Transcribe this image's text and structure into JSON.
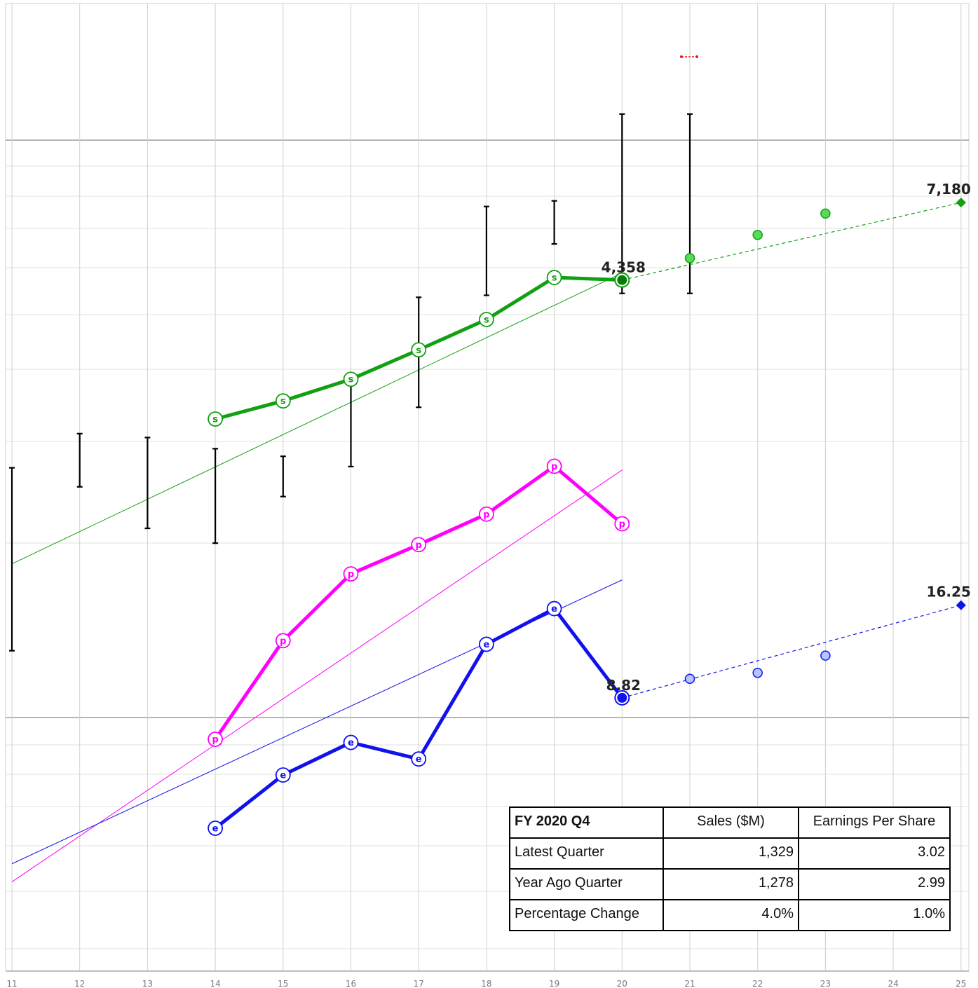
{
  "chart_data": {
    "type": "line",
    "x_ticks": [
      11,
      12,
      13,
      14,
      15,
      16,
      17,
      18,
      19,
      20,
      21,
      22,
      23,
      24,
      25
    ],
    "xlim": [
      11,
      25
    ],
    "grid": true,
    "series": [
      {
        "key": "sales",
        "marker_letter": "s",
        "color": "#11a011",
        "x": [
          14,
          15,
          16,
          17,
          18,
          19,
          20
        ],
        "values": [
          1780,
          2000,
          2300,
          2780,
          3380,
          4430,
          4358
        ],
        "end_label": "4,358",
        "trend": {
          "x": [
            11,
            20
          ],
          "y": [
            700,
            4560
          ]
        },
        "projection": {
          "x": [
            21,
            22,
            23
          ],
          "values": [
            5020,
            5830,
            6690
          ],
          "line_x": [
            20,
            25
          ],
          "line_y": [
            4358,
            7180
          ],
          "end_label": "7,180"
        },
        "range_bars": [
          {
            "x": 11,
            "low": 400,
            "high": 1300
          },
          {
            "x": 12,
            "low": 1150,
            "high": 1620
          },
          {
            "x": 13,
            "low": 880,
            "high": 1580
          },
          {
            "x": 14,
            "low": 800,
            "high": 1470
          },
          {
            "x": 15,
            "low": 1080,
            "high": 1400
          },
          {
            "x": 16,
            "low": 1310,
            "high": 2270
          },
          {
            "x": 17,
            "low": 1920,
            "high": 3900
          },
          {
            "x": 18,
            "low": 3950,
            "high": 7000
          },
          {
            "x": 19,
            "low": 5500,
            "high": 7260
          },
          {
            "x": 20,
            "low": 4000,
            "high": 12700
          },
          {
            "x": 21,
            "low": 4000,
            "high": 12700
          }
        ]
      },
      {
        "key": "price",
        "marker_letter": "p",
        "color": "#ff00ff",
        "x": [
          14,
          15,
          16,
          17,
          18,
          19,
          20
        ],
        "values": [
          1.72,
          2.92,
          4.18,
          4.89,
          5.76,
          7.45,
          5.47
        ],
        "trend": {
          "x": [
            11,
            20
          ],
          "y": [
            0.8,
            7.3
          ]
        }
      },
      {
        "key": "eps",
        "marker_letter": "e",
        "color": "#1111ee",
        "x": [
          14,
          15,
          16,
          17,
          18,
          19,
          20
        ],
        "values": [
          3.73,
          5.3,
          6.57,
          5.89,
          12.56,
          15.89,
          8.82
        ],
        "end_label": "8.82",
        "trend": {
          "x": [
            11,
            20
          ],
          "y": [
            2.95,
            19.2
          ]
        },
        "projection": {
          "x": [
            21,
            22,
            23
          ],
          "values": [
            10.0,
            10.4,
            11.65
          ],
          "line_x": [
            20,
            25
          ],
          "line_y": [
            8.82,
            16.25
          ],
          "end_label": "16.25"
        }
      }
    ]
  },
  "table": {
    "headers": [
      "FY 2020 Q4",
      "Sales ($M)",
      "Earnings Per Share"
    ],
    "rows": [
      [
        "Latest Quarter",
        "1,329",
        "3.02"
      ],
      [
        "Year Ago Quarter",
        "1,278",
        "2.99"
      ],
      [
        "Percentage Change",
        "4.0%",
        "1.0%"
      ]
    ]
  }
}
